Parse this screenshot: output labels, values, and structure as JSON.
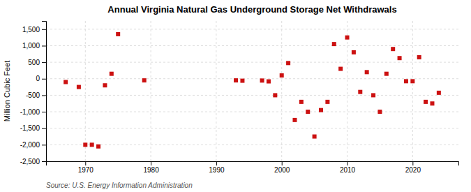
{
  "chart_data": {
    "type": "scatter",
    "title": "Annual Virginia Natural Gas Underground Storage Net Withdrawals",
    "ylabel": "Million Cubic Feet",
    "source": "Source: U.S. Energy Information Administration",
    "color": "#cc1111",
    "marker": "square",
    "grid": true,
    "x": [
      1967,
      1969,
      1970,
      1971,
      1972,
      1973,
      1974,
      1975,
      1979,
      1993,
      1994,
      1997,
      1998,
      1999,
      2000,
      2001,
      2002,
      2003,
      2004,
      2005,
      2006,
      2007,
      2008,
      2009,
      2010,
      2011,
      2012,
      2013,
      2014,
      2015,
      2016,
      2017,
      2018,
      2019,
      2020,
      2021,
      2022,
      2023,
      2024
    ],
    "values": [
      -100,
      -250,
      -2000,
      -2000,
      -2050,
      -200,
      150,
      1350,
      -50,
      -50,
      -60,
      -55,
      -80,
      -500,
      100,
      475,
      -1250,
      -700,
      -1000,
      -1750,
      -950,
      -700,
      1050,
      300,
      1250,
      800,
      -400,
      200,
      -500,
      -1000,
      150,
      900,
      625,
      -75,
      -75,
      650,
      -700,
      -750,
      -425
    ],
    "xlim": [
      1964,
      2027
    ],
    "xticks": [
      1970,
      1980,
      1990,
      2000,
      2010,
      2020
    ],
    "ylim": [
      -2500,
      1750
    ],
    "yticks": [
      {
        "value": -2500,
        "label": "-2,500"
      },
      {
        "value": -2000,
        "label": "-2,000"
      },
      {
        "value": -1500,
        "label": "-1,500"
      },
      {
        "value": -1000,
        "label": "-1,000"
      },
      -500,
      0,
      500,
      {
        "value": 1000,
        "label": "1,000"
      },
      {
        "value": 1500,
        "label": "1,500"
      }
    ]
  }
}
